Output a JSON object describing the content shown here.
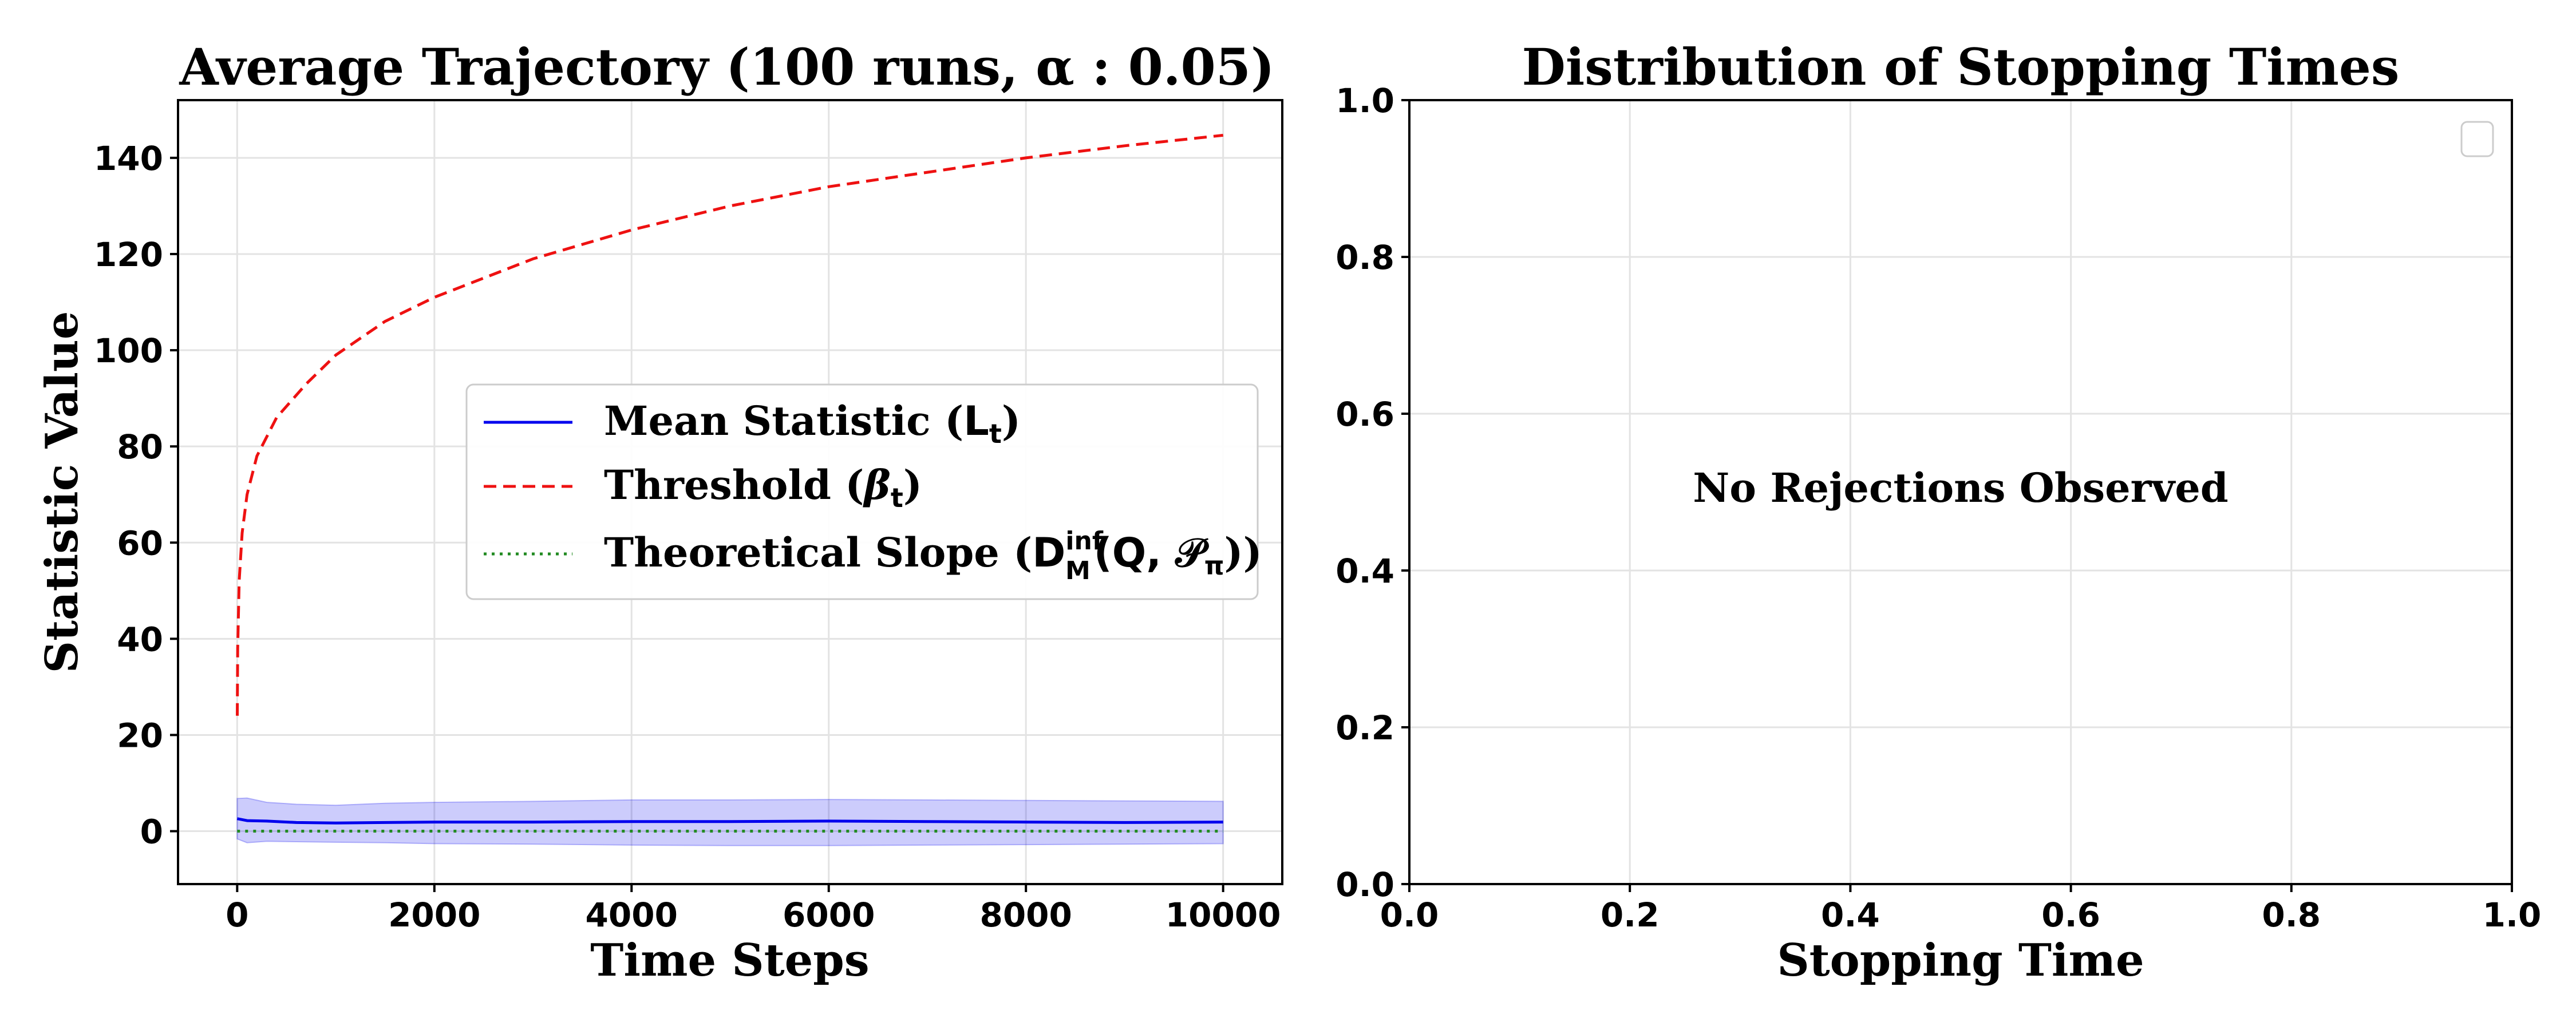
{
  "chart_data": [
    {
      "type": "line",
      "title": "Average Trajectory (100 runs, α : 0.05)",
      "xlabel": "Time Steps",
      "ylabel": "Statistic Value",
      "xlim": [
        -600,
        10600
      ],
      "ylim": [
        -11,
        152
      ],
      "xticks": [
        0,
        2000,
        4000,
        6000,
        8000,
        10000
      ],
      "yticks": [
        0,
        20,
        40,
        60,
        80,
        100,
        120,
        140
      ],
      "grid": true,
      "legend": {
        "placement": "center-right",
        "entries": [
          {
            "label": "Mean Statistic (Lt)",
            "text": "Mean Statistic (",
            "math_main": "L",
            "math_sub": "t",
            "text_end": ")",
            "color": "#0000ee",
            "style": "solid"
          },
          {
            "label": "Threshold (βt)",
            "text": "Threshold (",
            "math_main": "β",
            "math_sub": "t",
            "text_end": ")",
            "color": "#ee1111",
            "style": "dashed"
          },
          {
            "label": "Theoretical Slope (D_M^inf(Q, P_π))",
            "text": "Theoretical Slope (",
            "math_main": "D",
            "math_sup": "inf",
            "math_sub": "M",
            "math_rest": "(Q, 𝒫",
            "math_rest_sub": "π",
            "text_end": "))",
            "color": "#228b22",
            "style": "dotted"
          }
        ]
      },
      "series": [
        {
          "name": "Mean Statistic (Lt)",
          "color": "#0000ee",
          "x": [
            0,
            100,
            300,
            600,
            1000,
            1500,
            2000,
            3000,
            4000,
            5000,
            6000,
            7000,
            8000,
            9000,
            10000
          ],
          "y": [
            2.6,
            2.2,
            2.1,
            1.8,
            1.7,
            1.8,
            1.9,
            1.9,
            2.0,
            2.0,
            2.1,
            2.0,
            1.9,
            1.8,
            1.9
          ],
          "band_upper": [
            6.8,
            6.9,
            6.0,
            5.6,
            5.4,
            5.8,
            6.0,
            6.2,
            6.5,
            6.5,
            6.6,
            6.5,
            6.4,
            6.3,
            6.2
          ],
          "band_lower": [
            -1.6,
            -2.4,
            -2.1,
            -2.2,
            -2.3,
            -2.4,
            -2.6,
            -2.7,
            -2.9,
            -3.0,
            -3.0,
            -2.9,
            -2.8,
            -2.7,
            -2.6
          ]
        },
        {
          "name": "Threshold (βt)",
          "color": "#ee1111",
          "x": [
            1,
            5,
            20,
            50,
            100,
            200,
            400,
            700,
            1000,
            1500,
            2000,
            3000,
            4000,
            5000,
            6000,
            7000,
            8000,
            9000,
            10000
          ],
          "y": [
            24,
            38,
            52,
            62,
            70,
            78,
            86,
            93,
            99,
            106,
            111,
            119,
            125,
            130,
            134,
            137,
            140,
            142.5,
            144.7
          ]
        },
        {
          "name": "Theoretical Slope",
          "color": "#228b22",
          "x": [
            0,
            10000
          ],
          "y": [
            0,
            0
          ]
        }
      ]
    },
    {
      "type": "bar",
      "title": "Distribution of Stopping Times",
      "xlabel": "Stopping Time",
      "ylabel": "",
      "xlim": [
        0,
        1
      ],
      "ylim": [
        0,
        1
      ],
      "xticks": [
        "0.0",
        "0.2",
        "0.4",
        "0.6",
        "0.8",
        "1.0"
      ],
      "yticks": [
        "0.0",
        "0.2",
        "0.4",
        "0.6",
        "0.8",
        "1.0"
      ],
      "grid": true,
      "values": [],
      "annotation": "No Rejections Observed",
      "legend": {
        "placement": "top-right",
        "entries": []
      }
    }
  ]
}
